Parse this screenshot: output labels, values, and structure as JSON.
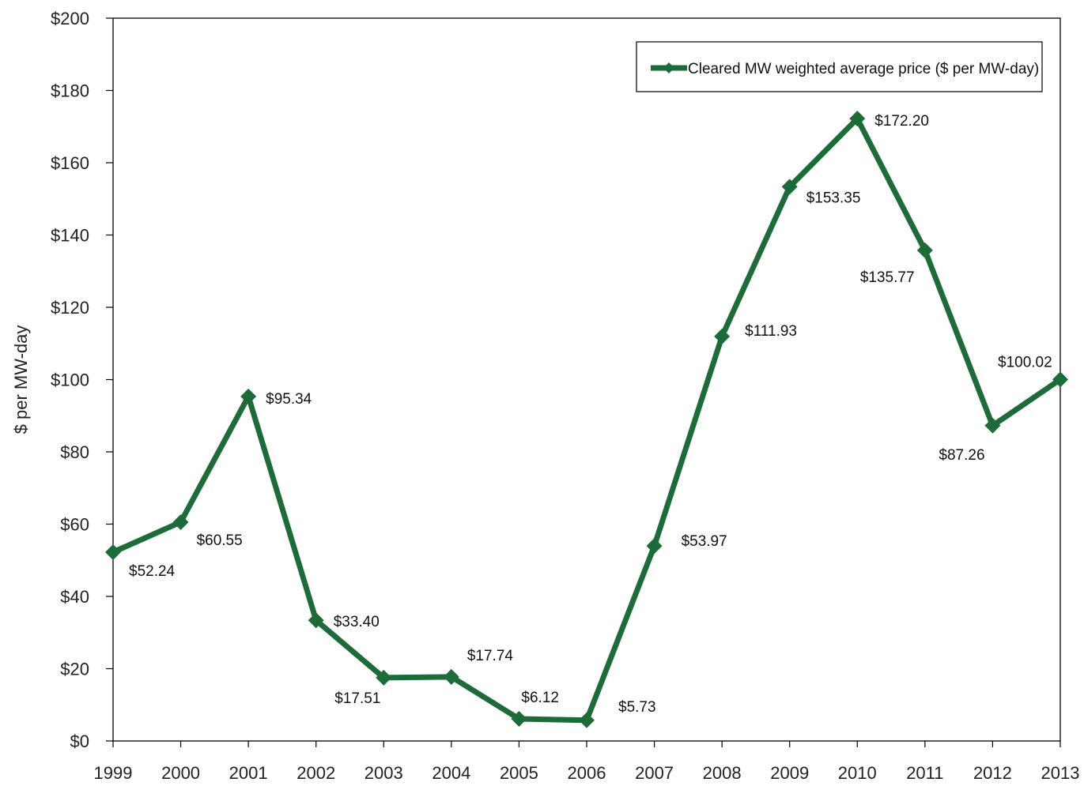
{
  "chart_data": {
    "type": "line",
    "title": "",
    "xlabel": "",
    "ylabel": "$ per MW-day",
    "categories": [
      "1999",
      "2000",
      "2001",
      "2002",
      "2003",
      "2004",
      "2005",
      "2006",
      "2007",
      "2008",
      "2009",
      "2010",
      "2011",
      "2012",
      "2013"
    ],
    "series": [
      {
        "name": "Cleared MW weighted average price ($ per MW-day)",
        "values": [
          52.24,
          60.55,
          95.34,
          33.4,
          17.51,
          17.74,
          6.12,
          5.73,
          53.97,
          111.93,
          153.35,
          172.2,
          135.77,
          87.26,
          100.02
        ],
        "labels": [
          "$52.24",
          "$60.55",
          "$95.34",
          "$33.40",
          "$17.51",
          "$17.74",
          "$6.12",
          "$5.73",
          "$53.97",
          "$111.93",
          "$153.35",
          "$172.20",
          "$135.77",
          "$87.26",
          "$100.02"
        ],
        "color": "#1e6b3a"
      }
    ],
    "ylim": [
      0,
      200
    ],
    "yticks": [
      0,
      20,
      40,
      60,
      80,
      100,
      120,
      140,
      160,
      180,
      200
    ],
    "ytick_labels": [
      "$0",
      "$20",
      "$40",
      "$60",
      "$80",
      "$100",
      "$120",
      "$140",
      "$160",
      "$180",
      "$200"
    ],
    "grid": false,
    "legend_position": "top-right",
    "marker": "diamond"
  }
}
